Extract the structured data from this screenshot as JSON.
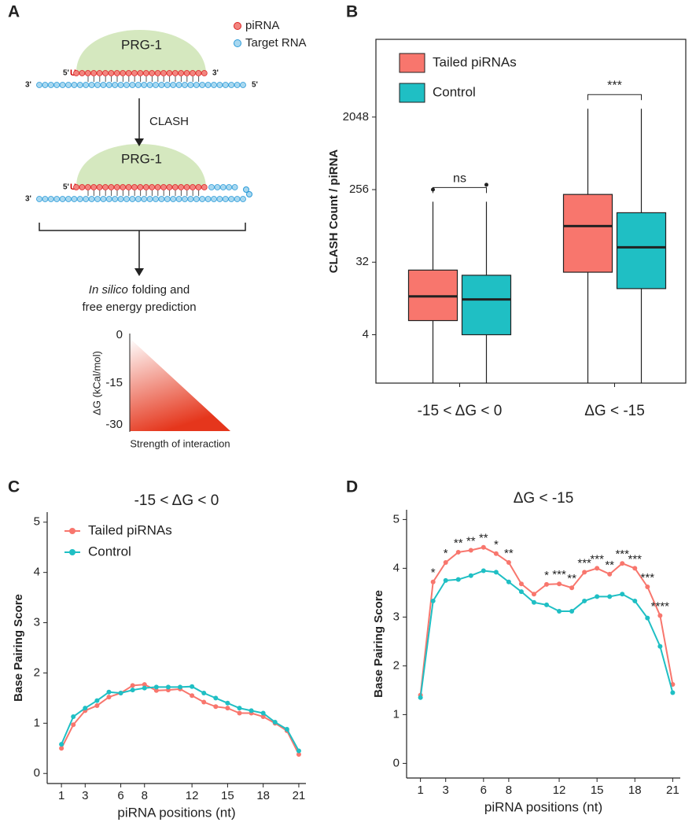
{
  "diagram": {
    "panel": "A",
    "legend": [
      "piRNA",
      "Target RNA"
    ],
    "protein": [
      "PRG-1",
      "PRG-1"
    ],
    "step": "CLASH",
    "ends_top": [
      "5'",
      "U",
      "3'",
      "3'",
      "5'"
    ],
    "ends_bottom": [
      "5'",
      "U",
      "3'"
    ],
    "prediction": [
      "In silico",
      "folding and",
      "free energy prediction"
    ],
    "energy_label": "ΔG (kCal/mol)",
    "energy_ticks": [
      "0",
      "-15",
      "-30"
    ],
    "energy_xlabel": "Strength of interaction"
  },
  "chart_data": [
    {
      "type": "box",
      "panel": "B",
      "ylabel": "CLASH Count / piRNA",
      "categories": [
        "-15 < ΔG < 0",
        "ΔG < -15"
      ],
      "log": true,
      "ylim": [
        1,
        19000
      ],
      "yticks": [
        4,
        32,
        256,
        2048
      ],
      "legend": "top-left",
      "comparisons": [
        "ns",
        "***"
      ],
      "series": [
        {
          "name": "Tailed piRNAs",
          "color": "#f8766d",
          "min": [
            1,
            1
          ],
          "q1": [
            6,
            24
          ],
          "median": [
            12,
            90
          ],
          "q3": [
            25.5,
            223
          ],
          "max": [
            181,
            2600
          ],
          "outliers": [
            [
              256
            ],
            []
          ]
        },
        {
          "name": "Control",
          "color": "#1fbfc4",
          "min": [
            1,
            1
          ],
          "q1": [
            4,
            15
          ],
          "median": [
            11,
            49
          ],
          "q3": [
            22,
            132
          ],
          "max": [
            181,
            2600
          ],
          "outliers": [
            [
              294
            ],
            []
          ]
        }
      ]
    },
    {
      "type": "line",
      "panel": "C",
      "title": "-15 < ΔG < 0",
      "xlabel": "piRNA positions (nt)",
      "ylabel": "Base Pairing Score",
      "x": [
        1,
        2,
        3,
        4,
        5,
        6,
        7,
        8,
        9,
        10,
        11,
        12,
        13,
        14,
        15,
        16,
        17,
        18,
        19,
        20,
        21
      ],
      "xlim": [
        -0.2,
        21.6
      ],
      "xticks": [
        1,
        3,
        6,
        8,
        12,
        15,
        18,
        21
      ],
      "ylim": [
        -0.2,
        5.2
      ],
      "yticks": [
        0,
        1,
        2,
        3,
        4,
        5
      ],
      "legend": "top-left",
      "series": [
        {
          "name": "Tailed piRNAs",
          "color": "#f8766d",
          "values": [
            0.5,
            0.97,
            1.25,
            1.35,
            1.52,
            1.6,
            1.75,
            1.77,
            1.65,
            1.66,
            1.68,
            1.55,
            1.42,
            1.33,
            1.3,
            1.2,
            1.2,
            1.13,
            1.0,
            0.85,
            0.38
          ]
        },
        {
          "name": "Control",
          "color": "#1fbfc4",
          "values": [
            0.58,
            1.13,
            1.3,
            1.45,
            1.62,
            1.6,
            1.66,
            1.7,
            1.72,
            1.72,
            1.72,
            1.73,
            1.6,
            1.5,
            1.4,
            1.3,
            1.25,
            1.2,
            1.02,
            0.88,
            0.45
          ]
        }
      ]
    },
    {
      "type": "line",
      "panel": "D",
      "title": "ΔG < -15",
      "xlabel": "piRNA positions (nt)",
      "ylabel": "Base Pairing Score",
      "x": [
        1,
        2,
        3,
        4,
        5,
        6,
        7,
        8,
        9,
        10,
        11,
        12,
        13,
        14,
        15,
        16,
        17,
        18,
        19,
        20,
        21
      ],
      "xlim": [
        -0.1,
        21.6
      ],
      "xticks": [
        1,
        3,
        6,
        8,
        12,
        15,
        18,
        21
      ],
      "ylim": [
        -0.3,
        5.2
      ],
      "yticks": [
        0,
        1,
        2,
        3,
        4,
        5
      ],
      "significance": [
        null,
        "*",
        "*",
        "**",
        "**",
        "**",
        "*",
        "**",
        null,
        null,
        "*",
        "***",
        "**",
        "***",
        "***",
        "**",
        "***",
        "***",
        "***",
        "****",
        null
      ],
      "series": [
        {
          "color": "#f8766d",
          "values": [
            1.4,
            3.72,
            4.12,
            4.33,
            4.37,
            4.43,
            4.3,
            4.12,
            3.68,
            3.47,
            3.67,
            3.68,
            3.6,
            3.92,
            4.0,
            3.88,
            4.1,
            4.0,
            3.62,
            3.03,
            1.62
          ]
        },
        {
          "color": "#1fbfc4",
          "values": [
            1.35,
            3.33,
            3.75,
            3.77,
            3.85,
            3.95,
            3.92,
            3.72,
            3.52,
            3.3,
            3.25,
            3.12,
            3.12,
            3.33,
            3.42,
            3.42,
            3.47,
            3.33,
            2.98,
            2.4,
            1.45
          ]
        }
      ]
    }
  ]
}
